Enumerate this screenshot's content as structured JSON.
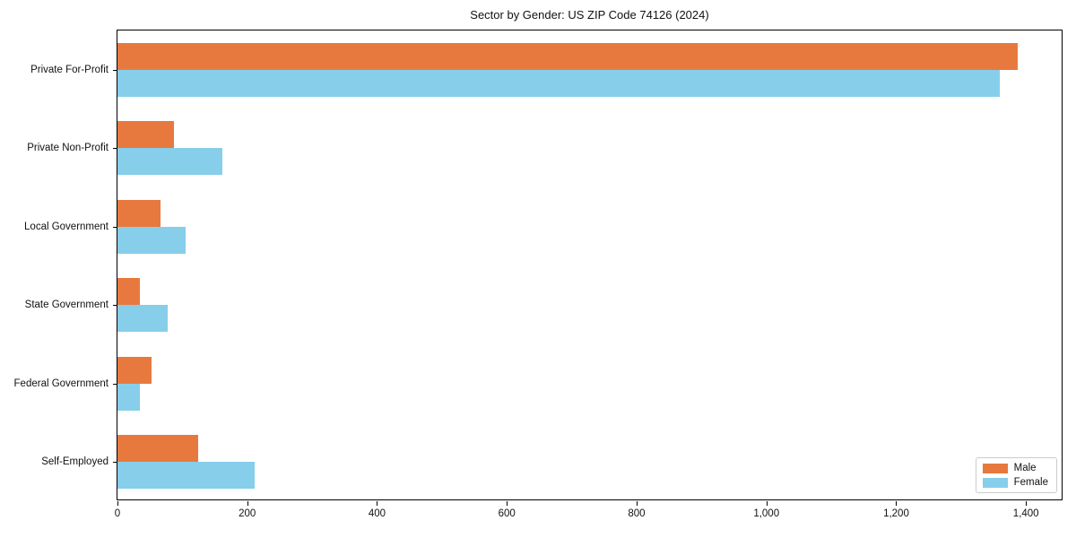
{
  "chart_data": {
    "type": "bar",
    "orientation": "horizontal",
    "title": "Sector by Gender: US ZIP Code 74126 (2024)",
    "categories": [
      "Private For-Profit",
      "Private Non-Profit",
      "Local Government",
      "State Government",
      "Federal Government",
      "Self-Employed"
    ],
    "series": [
      {
        "name": "Male",
        "color": "#e8793e",
        "values": [
          1387,
          87,
          67,
          35,
          52,
          125
        ]
      },
      {
        "name": "Female",
        "color": "#87ceeb",
        "values": [
          1359,
          161,
          105,
          77,
          34,
          212
        ]
      }
    ],
    "xlim": [
      0,
      1455
    ],
    "xticks": [
      0,
      200,
      400,
      600,
      800,
      1000,
      1200,
      1400
    ],
    "xtick_labels": [
      "0",
      "200",
      "400",
      "600",
      "800",
      "1,000",
      "1,200",
      "1,400"
    ],
    "xlabel": "",
    "ylabel": "",
    "grid": false,
    "legend_position": "lower right"
  }
}
